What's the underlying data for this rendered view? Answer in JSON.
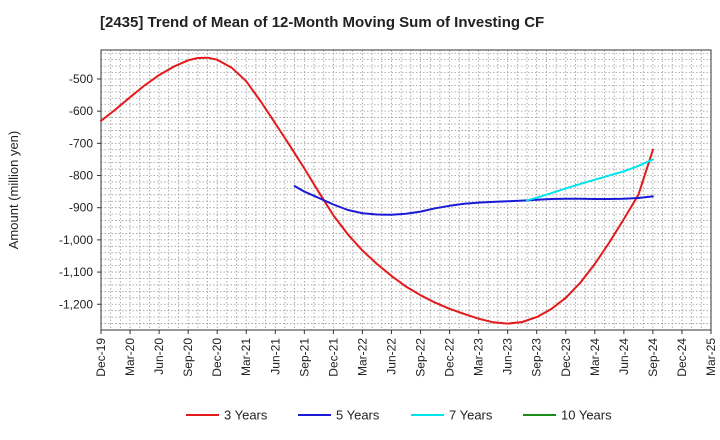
{
  "chart_data": {
    "type": "line",
    "title": "[2435]  Trend of Mean of 12-Month Moving Sum of Investing CF",
    "xlabel": "",
    "ylabel": "Amount (million yen)",
    "ylim": [
      -1280,
      -410
    ],
    "yticks": [
      -500,
      -600,
      -700,
      -800,
      -900,
      -1000,
      -1100,
      -1200
    ],
    "ytick_labels": [
      "-500",
      "-600",
      "-700",
      "-800",
      "-900",
      "-1,000",
      "-1,100",
      "-1,200"
    ],
    "x_tick_labels": [
      "Dec-19",
      "Mar-20",
      "Jun-20",
      "Sep-20",
      "Dec-20",
      "Mar-21",
      "Jun-21",
      "Sep-21",
      "Dec-21",
      "Mar-22",
      "Jun-22",
      "Sep-22",
      "Dec-22",
      "Mar-23",
      "Jun-23",
      "Sep-23",
      "Dec-23",
      "Mar-24",
      "Jun-24",
      "Sep-24",
      "Dec-24",
      "Mar-25"
    ],
    "grid": true,
    "legend_position": "bottom",
    "series": [
      {
        "name": "3 Years",
        "color": "#e31a1c",
        "x": [
          0,
          0.5,
          1,
          1.5,
          2,
          2.5,
          3,
          3.33,
          3.67,
          4,
          4.5,
          5,
          5.5,
          6,
          6.5,
          7,
          7.5,
          8,
          8.5,
          9,
          9.5,
          10,
          10.5,
          11,
          11.5,
          12,
          12.5,
          13,
          13.5,
          14,
          14.5,
          15,
          15.5,
          16,
          16.5,
          17,
          17.5,
          18,
          18.5,
          19
        ],
        "values": [
          -630,
          -595,
          -557,
          -520,
          -488,
          -462,
          -442,
          -435,
          -434,
          -440,
          -465,
          -507,
          -570,
          -638,
          -707,
          -778,
          -852,
          -924,
          -983,
          -1033,
          -1075,
          -1112,
          -1145,
          -1172,
          -1195,
          -1214,
          -1230,
          -1245,
          -1256,
          -1260,
          -1255,
          -1240,
          -1215,
          -1180,
          -1133,
          -1075,
          -1008,
          -935,
          -860,
          -720
        ]
      },
      {
        "name": "5 Years",
        "color": "#1a1ad6",
        "x": [
          6.67,
          7,
          7.5,
          8,
          8.5,
          9,
          9.5,
          10,
          10.5,
          11,
          11.5,
          12,
          12.5,
          13,
          13.5,
          14,
          14.5,
          15,
          15.5,
          16,
          16.5,
          17,
          17.5,
          18,
          18.5,
          19
        ],
        "values": [
          -833,
          -850,
          -870,
          -890,
          -907,
          -917,
          -921,
          -922,
          -919,
          -912,
          -902,
          -894,
          -888,
          -884,
          -882,
          -880,
          -878,
          -875,
          -873,
          -872,
          -872,
          -873,
          -873,
          -872,
          -870,
          -865
        ]
      },
      {
        "name": "7 Years",
        "color": "#00e5ee",
        "x": [
          14.67,
          15,
          15.5,
          16,
          16.5,
          17,
          17.5,
          18,
          18.5,
          19
        ],
        "values": [
          -877,
          -869,
          -855,
          -840,
          -826,
          -813,
          -800,
          -787,
          -770,
          -750
        ]
      },
      {
        "name": "10 Years",
        "color": "#1a8c1a",
        "x": [],
        "values": []
      }
    ]
  }
}
